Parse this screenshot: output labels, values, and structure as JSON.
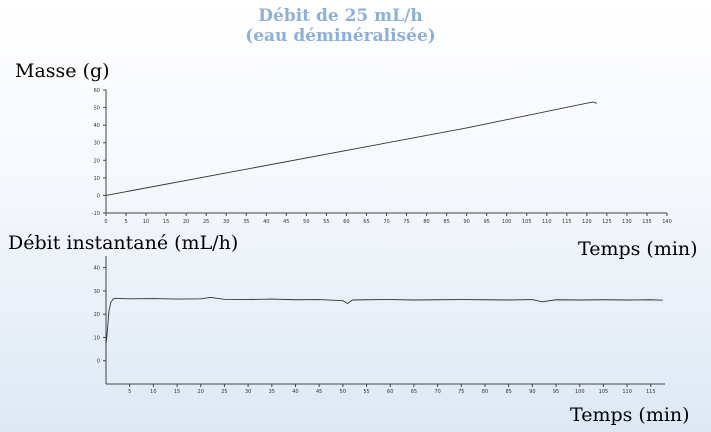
{
  "title": {
    "line1": "Débit de 25 mL/h",
    "line2": "(eau déminéralisée)"
  },
  "chart_data": [
    {
      "type": "line",
      "ylabel": "Masse (g)",
      "xlabel": "Temps (min)",
      "xlim": [
        0,
        140
      ],
      "ylim": [
        -10,
        60
      ],
      "xticks": [
        0,
        5,
        10,
        15,
        20,
        25,
        30,
        35,
        40,
        45,
        50,
        55,
        60,
        65,
        70,
        75,
        80,
        85,
        90,
        95,
        100,
        105,
        110,
        115,
        120,
        125,
        130,
        135,
        140
      ],
      "yticks": [
        -10,
        0,
        10,
        20,
        30,
        40,
        50,
        60
      ],
      "series": [
        {
          "x": [
            0,
            30,
            60,
            90,
            121.5,
            122.5
          ],
          "y": [
            0,
            12.8,
            25.6,
            38.4,
            53.2,
            52.4
          ]
        }
      ],
      "grid": false
    },
    {
      "type": "line",
      "ylabel": "Débit instantané (mL/h)",
      "xlabel": "Temps (min)",
      "xlim": [
        0,
        118
      ],
      "ylim": [
        -10,
        45
      ],
      "xticks": [
        5,
        10,
        15,
        20,
        25,
        30,
        35,
        40,
        45,
        50,
        55,
        60,
        65,
        70,
        75,
        80,
        85,
        90,
        95,
        100,
        105,
        110,
        115
      ],
      "yticks": [
        0,
        10,
        20,
        30,
        40
      ],
      "series": [
        {
          "x": [
            0,
            0.3,
            0.6,
            1,
            1.5,
            2,
            5,
            10,
            15,
            20,
            22,
            25,
            30,
            35,
            40,
            45,
            50,
            51,
            52,
            55,
            60,
            65,
            70,
            75,
            80,
            85,
            90,
            92,
            95,
            100,
            105,
            110,
            115,
            117.5
          ],
          "y": [
            7,
            13,
            21,
            25,
            26.5,
            26.8,
            26.6,
            26.7,
            26.5,
            26.6,
            27.2,
            26.4,
            26.3,
            26.5,
            26.2,
            26.3,
            25.8,
            24.6,
            26.1,
            26.2,
            26.3,
            26.1,
            26.2,
            26.3,
            26.2,
            26.1,
            26.3,
            25.3,
            26.2,
            26.1,
            26.2,
            26.1,
            26.2,
            26
          ]
        }
      ],
      "grid": false
    }
  ]
}
